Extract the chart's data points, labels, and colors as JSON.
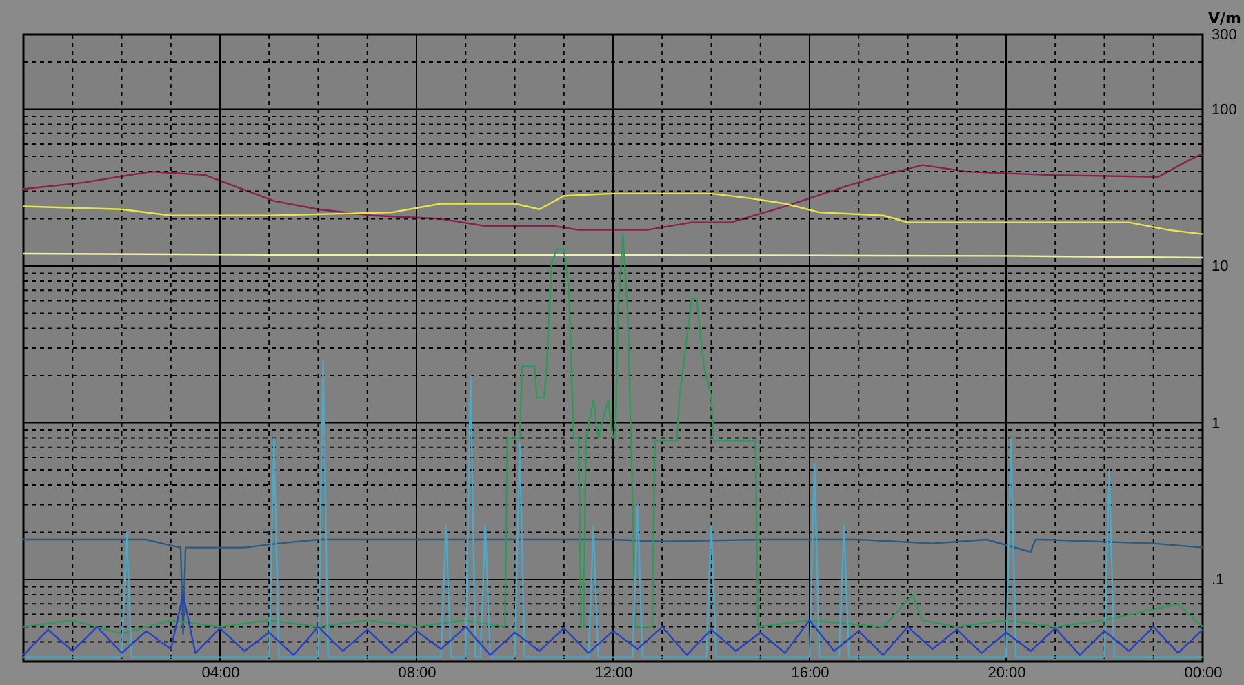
{
  "chart_data": {
    "type": "line",
    "ylabel": "V/m",
    "log": "y",
    "grid": true,
    "line_style": "solid",
    "marker": "none",
    "xlim": [
      0,
      24
    ],
    "ylim": [
      0.03,
      300
    ],
    "xticks": [
      {
        "value": 0,
        "label": null
      },
      {
        "value": 1,
        "label": null
      },
      {
        "value": 2,
        "label": null
      },
      {
        "value": 3,
        "label": null
      },
      {
        "value": 4,
        "label": "04:00"
      },
      {
        "value": 5,
        "label": null
      },
      {
        "value": 6,
        "label": null
      },
      {
        "value": 7,
        "label": null
      },
      {
        "value": 8,
        "label": "08:00"
      },
      {
        "value": 9,
        "label": null
      },
      {
        "value": 10,
        "label": null
      },
      {
        "value": 11,
        "label": null
      },
      {
        "value": 12,
        "label": "12:00"
      },
      {
        "value": 13,
        "label": null
      },
      {
        "value": 14,
        "label": null
      },
      {
        "value": 15,
        "label": null
      },
      {
        "value": 16,
        "label": "16:00"
      },
      {
        "value": 17,
        "label": null
      },
      {
        "value": 18,
        "label": null
      },
      {
        "value": 19,
        "label": null
      },
      {
        "value": 20,
        "label": "20:00"
      },
      {
        "value": 21,
        "label": null
      },
      {
        "value": 22,
        "label": null
      },
      {
        "value": 23,
        "label": null
      },
      {
        "value": 24,
        "label": "00:00"
      }
    ],
    "yticks": [
      {
        "value": 0.04,
        "label": null
      },
      {
        "value": 0.05,
        "label": null
      },
      {
        "value": 0.06,
        "label": null
      },
      {
        "value": 0.07,
        "label": null
      },
      {
        "value": 0.08,
        "label": null
      },
      {
        "value": 0.09,
        "label": null
      },
      {
        "value": 0.1,
        "label": ".1"
      },
      {
        "value": 0.2,
        "label": null
      },
      {
        "value": 0.3,
        "label": null
      },
      {
        "value": 0.4,
        "label": null
      },
      {
        "value": 0.5,
        "label": null
      },
      {
        "value": 0.6,
        "label": null
      },
      {
        "value": 0.7,
        "label": null
      },
      {
        "value": 0.8,
        "label": null
      },
      {
        "value": 0.9,
        "label": null
      },
      1,
      {
        "value": 2,
        "label": null
      },
      {
        "value": 3,
        "label": null
      },
      {
        "value": 4,
        "label": null
      },
      {
        "value": 5,
        "label": null
      },
      {
        "value": 6,
        "label": null
      },
      {
        "value": 7,
        "label": null
      },
      {
        "value": 8,
        "label": null
      },
      {
        "value": 9,
        "label": null
      },
      10,
      {
        "value": 20,
        "label": null
      },
      {
        "value": 30,
        "label": null
      },
      {
        "value": 40,
        "label": null
      },
      {
        "value": 50,
        "label": null
      },
      {
        "value": 60,
        "label": null
      },
      {
        "value": 70,
        "label": null
      },
      {
        "value": 80,
        "label": null
      },
      {
        "value": 90,
        "label": null
      },
      100,
      {
        "value": 200,
        "label": null
      },
      300
    ],
    "series": [
      {
        "color": "#8b1f4f",
        "x": [
          0,
          1.2,
          2.6,
          3.7,
          5.1,
          6.0,
          7.1,
          8.5,
          9.4,
          10.8,
          11.3,
          12.7,
          13.6,
          14.4,
          15.5,
          16.7,
          17.5,
          18.3,
          19.2,
          20.9,
          23.1,
          23.7,
          24
        ],
        "values": [
          31,
          34,
          40,
          38,
          26,
          23,
          21,
          20,
          18,
          18,
          17,
          17,
          19,
          19,
          24,
          32,
          38,
          44,
          40,
          38,
          37,
          47,
          52
        ]
      },
      {
        "color": "#e6e64a",
        "x": [
          0,
          2,
          3,
          5,
          7.5,
          8.5,
          10,
          10.5,
          11,
          12,
          14,
          14.8,
          15.5,
          16.2,
          17.5,
          18,
          21,
          22.5,
          23.3,
          24
        ],
        "values": [
          24,
          23,
          21,
          21,
          22,
          25,
          25,
          23,
          28,
          29,
          29,
          27,
          25,
          22,
          21,
          19,
          19,
          19,
          17,
          16
        ]
      },
      {
        "color": "#f0f0a8",
        "x": [
          0,
          5,
          10,
          15,
          20,
          24
        ],
        "values": [
          12,
          11.8,
          11.8,
          11.7,
          11.6,
          11.3
        ]
      },
      {
        "color": "#2a5a80",
        "x": [
          0,
          2.5,
          3,
          3.2,
          3.25,
          3.3,
          4.5,
          5.2,
          6,
          9,
          12,
          13,
          15,
          17,
          18.5,
          19.6,
          20.5,
          20.6,
          20.7,
          23,
          24
        ],
        "values": [
          0.18,
          0.18,
          0.165,
          0.16,
          0.045,
          0.16,
          0.16,
          0.17,
          0.18,
          0.18,
          0.18,
          0.175,
          0.18,
          0.18,
          0.17,
          0.18,
          0.15,
          0.18,
          0.18,
          0.17,
          0.16
        ]
      },
      {
        "color": "#2e9a5a",
        "x": [
          0,
          1,
          2,
          3,
          4,
          5,
          6,
          7,
          8,
          9,
          9.8,
          9.85,
          10.1,
          10.15,
          10.4,
          10.45,
          10.6,
          10.65,
          10.75,
          10.85,
          11.0,
          11.1,
          11.2,
          11.3,
          11.35,
          11.4,
          11.45,
          11.6,
          11.7,
          11.9,
          12.0,
          12.05,
          12.1,
          12.2,
          12.3,
          12.4,
          12.45,
          12.8,
          12.85,
          13.3,
          13.35,
          13.6,
          13.7,
          13.85,
          14.0,
          14.05,
          14.9,
          14.95,
          16,
          17.5,
          18.1,
          18.3,
          19,
          20,
          21,
          22,
          23.5,
          24
        ],
        "values": [
          0.05,
          0.055,
          0.045,
          0.055,
          0.05,
          0.055,
          0.05,
          0.055,
          0.05,
          0.055,
          0.05,
          0.8,
          0.8,
          2.3,
          2.3,
          1.45,
          1.45,
          2.3,
          10.4,
          12.8,
          12.8,
          7.2,
          0.8,
          0.8,
          0.05,
          0.05,
          0.8,
          1.4,
          0.8,
          1.4,
          0.8,
          0.8,
          5,
          16,
          5,
          0.3,
          0.05,
          0.05,
          0.77,
          0.77,
          1.45,
          6.2,
          6.2,
          2.3,
          1.45,
          0.77,
          0.77,
          0.05,
          0.055,
          0.05,
          0.08,
          0.055,
          0.05,
          0.055,
          0.05,
          0.055,
          0.07,
          0.05
        ]
      },
      {
        "color": "#4aa8c8",
        "x": [
          0,
          2.0,
          2.1,
          2.2,
          5.0,
          5.1,
          5.2,
          6.0,
          6.1,
          6.2,
          8.5,
          8.6,
          8.7,
          9.0,
          9.1,
          9.2,
          9.3,
          9.4,
          9.5,
          10.0,
          10.1,
          10.2,
          11.5,
          11.6,
          11.7,
          12.4,
          12.5,
          12.6,
          13.9,
          14.0,
          14.1,
          16.0,
          16.1,
          16.2,
          16.6,
          16.7,
          16.8,
          20.0,
          20.1,
          20.2,
          22.0,
          22.1,
          22.2,
          24
        ],
        "values": [
          0.032,
          0.032,
          0.2,
          0.032,
          0.032,
          0.8,
          0.032,
          0.032,
          2.5,
          0.032,
          0.032,
          0.22,
          0.032,
          0.032,
          2.0,
          0.032,
          0.032,
          0.22,
          0.032,
          0.032,
          0.75,
          0.032,
          0.032,
          0.22,
          0.032,
          0.032,
          0.3,
          0.032,
          0.032,
          0.22,
          0.032,
          0.032,
          0.55,
          0.032,
          0.032,
          0.22,
          0.032,
          0.032,
          0.8,
          0.032,
          0.032,
          0.5,
          0.032,
          0.032
        ]
      },
      {
        "color": "#2442c4",
        "x": [
          0,
          0.5,
          1,
          1.5,
          2,
          2.5,
          3,
          3.25,
          3.5,
          4,
          4.5,
          5,
          5.5,
          6,
          6.5,
          7,
          7.5,
          8,
          8.5,
          9,
          9.5,
          10,
          10.5,
          11,
          11.5,
          12,
          12.5,
          13,
          13.5,
          14,
          14.5,
          15,
          15.5,
          16,
          16.5,
          17,
          17.5,
          18,
          18.5,
          19,
          19.5,
          20,
          20.5,
          21,
          21.5,
          22,
          22.5,
          23,
          23.5,
          24
        ],
        "values": [
          0.033,
          0.048,
          0.035,
          0.05,
          0.034,
          0.047,
          0.036,
          0.08,
          0.034,
          0.049,
          0.035,
          0.046,
          0.033,
          0.05,
          0.035,
          0.048,
          0.034,
          0.047,
          0.036,
          0.05,
          0.033,
          0.046,
          0.035,
          0.049,
          0.034,
          0.047,
          0.036,
          0.05,
          0.033,
          0.048,
          0.035,
          0.046,
          0.034,
          0.055,
          0.035,
          0.047,
          0.033,
          0.05,
          0.036,
          0.048,
          0.034,
          0.046,
          0.035,
          0.049,
          0.033,
          0.047,
          0.035,
          0.05,
          0.034,
          0.048
        ]
      }
    ]
  }
}
